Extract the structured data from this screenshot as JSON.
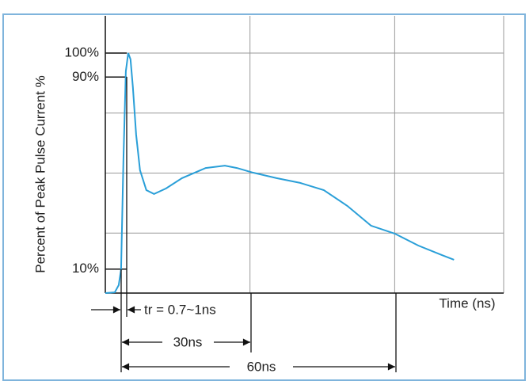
{
  "chart_data": {
    "type": "line",
    "x_label": "Time (ns)",
    "y_label": "Percent of Peak Pulse Current %",
    "xlim": [
      0,
      82.6
    ],
    "ylim": [
      0,
      100
    ],
    "xgrid": [
      30,
      60
    ],
    "ygrid": [
      0,
      25,
      50,
      75,
      100
    ],
    "yticks": [
      {
        "value": 10,
        "label": "10%"
      },
      {
        "value": 90,
        "label": "90%"
      },
      {
        "value": 100,
        "label": "100%"
      }
    ],
    "grid": true,
    "series": [
      {
        "color": "#2a9fd8",
        "x": [
          0,
          1.96,
          2.78,
          3.27,
          3.76,
          4.25,
          4.74,
          5.23,
          5.72,
          6.38,
          7.19,
          8.5,
          10.1,
          12.6,
          15.9,
          20.8,
          24.8,
          27.3,
          30.6,
          35.5,
          40.4,
          45.3,
          50.2,
          55.1,
          60,
          64.9,
          69.8,
          72.3
        ],
        "values": [
          0,
          0.3,
          3.3,
          9.9,
          56.1,
          92.4,
          100,
          97.4,
          85.8,
          66.0,
          51.2,
          42.9,
          41.3,
          43.6,
          47.9,
          52.1,
          53.1,
          52.1,
          50.2,
          47.9,
          45.9,
          42.9,
          36.3,
          28.1,
          24.8,
          19.8,
          15.8,
          13.9
        ]
      }
    ],
    "annotations": [
      "tr = 0.7~1ns",
      "30ns",
      "60ns"
    ]
  }
}
